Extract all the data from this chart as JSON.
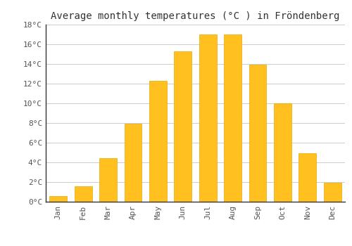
{
  "title": "Average monthly temperatures (°C ) in Fröndenberg",
  "months": [
    "Jan",
    "Feb",
    "Mar",
    "Apr",
    "May",
    "Jun",
    "Jul",
    "Aug",
    "Sep",
    "Oct",
    "Nov",
    "Dec"
  ],
  "values": [
    0.6,
    1.6,
    4.4,
    7.9,
    12.3,
    15.3,
    17.0,
    17.0,
    13.9,
    10.0,
    4.9,
    1.9
  ],
  "bar_color": "#FFC020",
  "bar_edge_color": "#E8A800",
  "background_color": "#ffffff",
  "grid_color": "#cccccc",
  "title_fontsize": 10,
  "tick_label_fontsize": 8,
  "ylim": [
    0,
    18
  ],
  "yticks": [
    0,
    2,
    4,
    6,
    8,
    10,
    12,
    14,
    16,
    18
  ]
}
